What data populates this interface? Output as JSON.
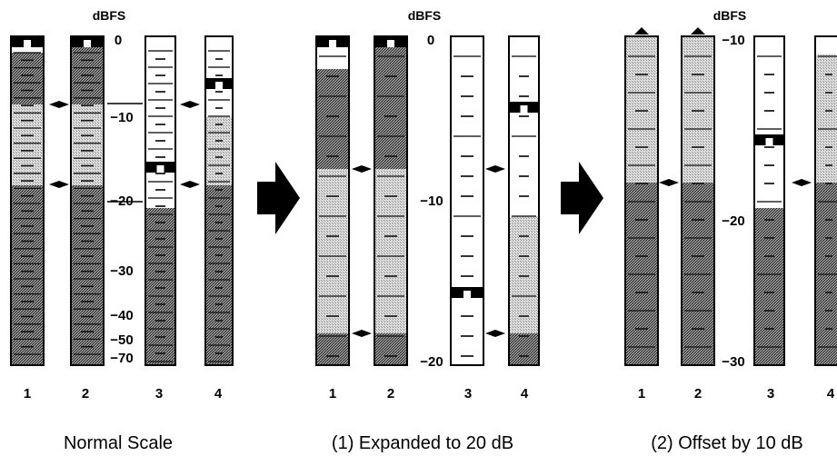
{
  "unit_label": "dBFS",
  "channel_labels": [
    "1",
    "2",
    "3",
    "4"
  ],
  "panels": [
    {
      "caption": "Normal Scale",
      "scale_labels": [
        "0",
        "−10",
        "−20",
        "−30",
        "−40",
        "−50",
        "−70"
      ]
    },
    {
      "caption": "(1) Expanded to 20 dB",
      "scale_labels": [
        "0",
        "−10",
        "−20"
      ]
    },
    {
      "caption": "(2) Offset by 10 dB",
      "scale_labels": [
        "−10",
        "−20",
        "−30"
      ]
    }
  ],
  "icons": [
    "arrow-right-icon",
    "pointer-diamond-icon",
    "overflow-triangle-icon",
    "peak-hold-marker-icon"
  ]
}
